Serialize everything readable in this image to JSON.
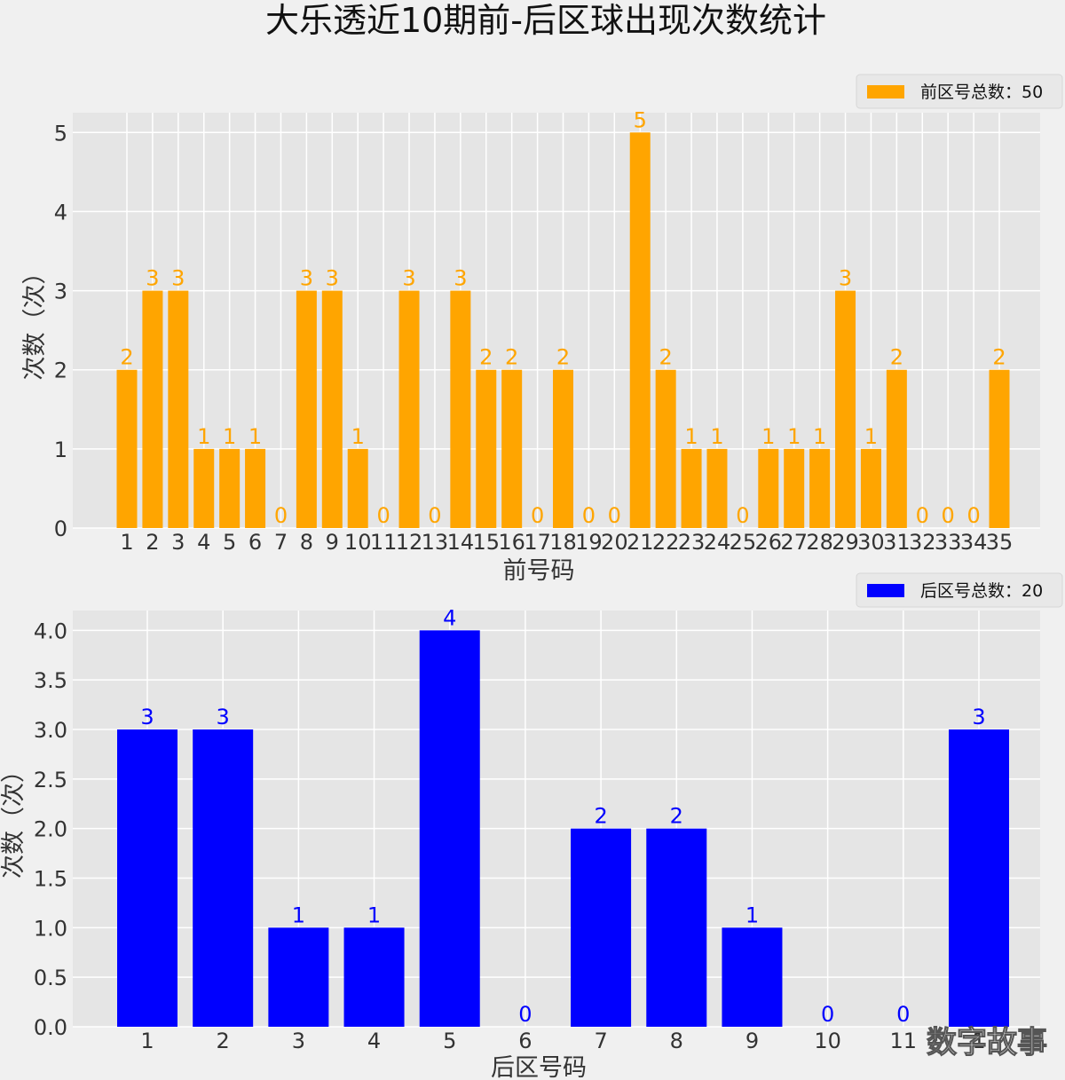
{
  "figure": {
    "title": "大乐透近10期前-后区球出现次数统计",
    "watermark": "数字故事"
  },
  "chart_data": [
    {
      "type": "bar",
      "categories": [
        "1",
        "2",
        "3",
        "4",
        "5",
        "6",
        "7",
        "8",
        "9",
        "10",
        "11",
        "12",
        "13",
        "14",
        "15",
        "16",
        "17",
        "18",
        "19",
        "20",
        "21",
        "22",
        "23",
        "24",
        "25",
        "26",
        "27",
        "28",
        "29",
        "30",
        "31",
        "32",
        "33",
        "34",
        "35"
      ],
      "values": [
        2,
        3,
        3,
        1,
        1,
        1,
        0,
        3,
        3,
        1,
        0,
        3,
        0,
        3,
        2,
        2,
        0,
        2,
        0,
        0,
        5,
        2,
        1,
        1,
        0,
        1,
        1,
        1,
        3,
        1,
        2,
        0,
        0,
        0,
        2
      ],
      "data_labels": [
        "2",
        "3",
        "3",
        "1",
        "1",
        "1",
        "0",
        "3",
        "3",
        "1",
        "0",
        "3",
        "0",
        "3",
        "2",
        "2",
        "0",
        "2",
        "0",
        "0",
        "5",
        "2",
        "1",
        "1",
        "0",
        "1",
        "1",
        "1",
        "3",
        "1",
        "2",
        "0",
        "0",
        "0",
        "2"
      ],
      "xlabel": "前号码",
      "ylabel": "次数（次）",
      "ylim": [
        0,
        5.25
      ],
      "yticks": [
        "0",
        "1",
        "2",
        "3",
        "4",
        "5"
      ],
      "ytick_values": [
        0,
        1,
        2,
        3,
        4,
        5
      ],
      "legend": "前区号总数：50",
      "legend_position": "top-right",
      "color": "#ffa500",
      "grid": true
    },
    {
      "type": "bar",
      "categories": [
        "1",
        "2",
        "3",
        "4",
        "5",
        "6",
        "7",
        "8",
        "9",
        "10",
        "11",
        "1"
      ],
      "values": [
        3,
        3,
        1,
        1,
        4,
        0,
        2,
        2,
        1,
        0,
        0,
        3
      ],
      "data_labels": [
        "3",
        "3",
        "1",
        "1",
        "4",
        "0",
        "2",
        "2",
        "1",
        "0",
        "0",
        "3"
      ],
      "xlabel": "后区号码",
      "ylabel": "次数（次）",
      "ylim": [
        0,
        4.2
      ],
      "yticks": [
        "0.0",
        "0.5",
        "1.0",
        "1.5",
        "2.0",
        "2.5",
        "3.0",
        "3.5",
        "4.0"
      ],
      "ytick_values": [
        0,
        0.5,
        1,
        1.5,
        2,
        2.5,
        3,
        3.5,
        4
      ],
      "legend": "后区号总数：20",
      "legend_position": "top-right",
      "color": "#0000ff",
      "grid": true
    }
  ]
}
